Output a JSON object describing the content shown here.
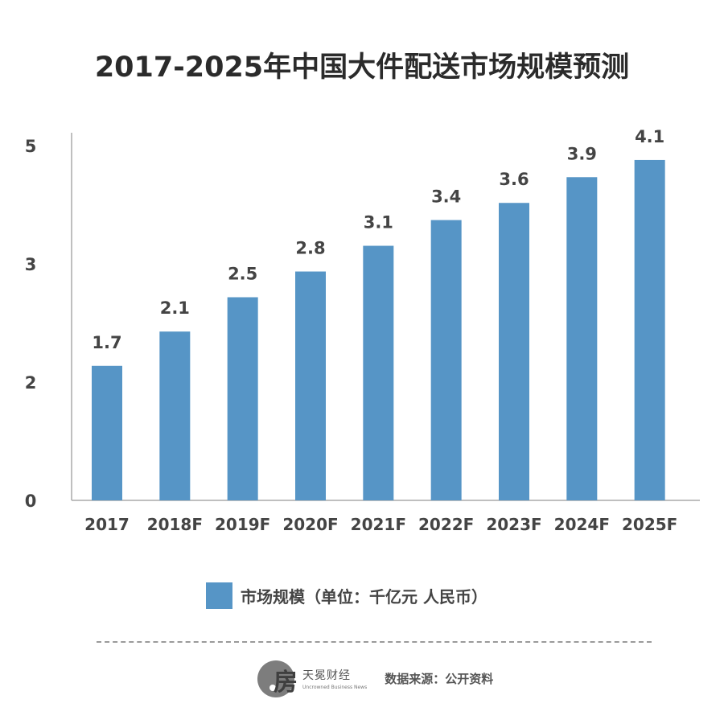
{
  "colors": {
    "bar": "#5695c6",
    "axis": "#aaaaaa",
    "text": "#444444"
  },
  "chart_data": {
    "type": "bar",
    "title": "2017-2025年中国大件配送市场规模预测",
    "categories": [
      "2017",
      "2018F",
      "2019F",
      "2020F",
      "2021F",
      "2022F",
      "2023F",
      "2024F",
      "2025F"
    ],
    "values": [
      1.7,
      2.1,
      2.5,
      2.8,
      3.1,
      3.4,
      3.6,
      3.9,
      4.1
    ],
    "value_labels": [
      "1.7",
      "2.1",
      "2.5",
      "2.8",
      "3.1",
      "3.4",
      "3.6",
      "3.9",
      "4.1"
    ],
    "ytick_labels": [
      "5",
      "3",
      "2",
      "0"
    ],
    "legend": [
      "市场规模（单位：千亿元 人民币）"
    ],
    "legend_position": "bottom-center",
    "grid": false,
    "xlabel": "",
    "ylabel": ""
  },
  "legend_label": "市场规模（单位：千亿元 人民币）",
  "footer": {
    "logo_glyph": "房",
    "brand_name": "天冕财经",
    "brand_subtitle": "Uncrowned Business News",
    "source_text": "数据来源：公开资料"
  }
}
